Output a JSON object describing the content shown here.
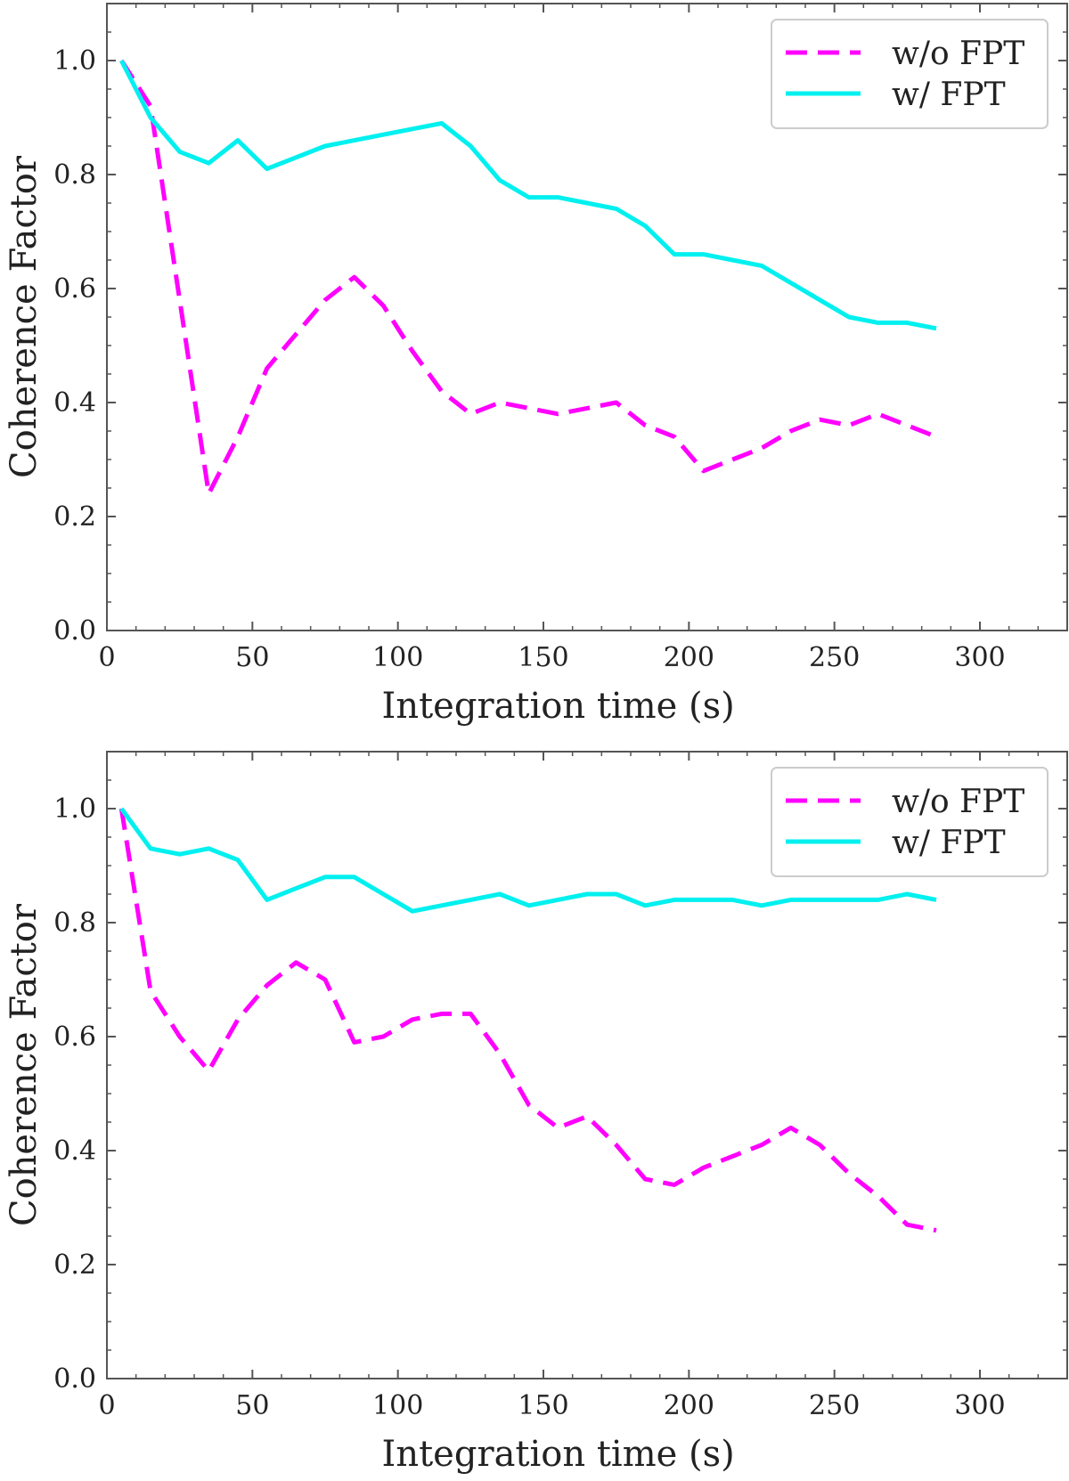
{
  "colors": {
    "wo_fpt": "#ff00ff",
    "w_fpt": "#00f0f0",
    "axis": "#555555"
  },
  "chart_data": [
    {
      "type": "line",
      "title": "",
      "xlabel": "Integration time (s)",
      "ylabel": "Coherence Factor",
      "xlim": [
        0,
        330
      ],
      "ylim": [
        0.0,
        1.1
      ],
      "xticks": [
        0,
        50,
        100,
        150,
        200,
        250,
        300
      ],
      "yticks": [
        0.0,
        0.2,
        0.4,
        0.6,
        0.8,
        1.0
      ],
      "xtick_labels": [
        "0",
        "50",
        "100",
        "150",
        "200",
        "250",
        "300"
      ],
      "ytick_labels": [
        "0.0",
        "0.2",
        "0.4",
        "0.6",
        "0.8",
        "1.0"
      ],
      "legend_position": "top-right",
      "x": [
        5,
        15,
        25,
        35,
        45,
        55,
        65,
        75,
        85,
        95,
        105,
        115,
        125,
        135,
        145,
        155,
        165,
        175,
        185,
        195,
        205,
        215,
        225,
        235,
        245,
        255,
        265,
        275,
        285
      ],
      "series": [
        {
          "name": "w/o FPT",
          "style": "dashed",
          "color": "#ff00ff",
          "values": [
            1.0,
            0.92,
            0.58,
            0.24,
            0.34,
            0.46,
            0.52,
            0.58,
            0.62,
            0.57,
            0.49,
            0.42,
            0.38,
            0.4,
            0.39,
            0.38,
            0.39,
            0.4,
            0.36,
            0.34,
            0.28,
            0.3,
            0.32,
            0.35,
            0.37,
            0.36,
            0.38,
            0.36,
            0.34
          ]
        },
        {
          "name": "w/ FPT",
          "style": "solid",
          "color": "#00f0f0",
          "values": [
            1.0,
            0.9,
            0.84,
            0.82,
            0.86,
            0.81,
            0.83,
            0.85,
            0.86,
            0.87,
            0.88,
            0.89,
            0.85,
            0.79,
            0.76,
            0.76,
            0.75,
            0.74,
            0.71,
            0.66,
            0.66,
            0.65,
            0.64,
            0.61,
            0.58,
            0.55,
            0.54,
            0.54,
            0.53
          ]
        }
      ]
    },
    {
      "type": "line",
      "title": "",
      "xlabel": "Integration time (s)",
      "ylabel": "Coherence Factor",
      "xlim": [
        0,
        330
      ],
      "ylim": [
        0.0,
        1.1
      ],
      "xticks": [
        0,
        50,
        100,
        150,
        200,
        250,
        300
      ],
      "yticks": [
        0.0,
        0.2,
        0.4,
        0.6,
        0.8,
        1.0
      ],
      "xtick_labels": [
        "0",
        "50",
        "100",
        "150",
        "200",
        "250",
        "300"
      ],
      "ytick_labels": [
        "0.0",
        "0.2",
        "0.4",
        "0.6",
        "0.8",
        "1.0"
      ],
      "legend_position": "top-right",
      "x": [
        5,
        15,
        25,
        35,
        45,
        55,
        65,
        75,
        85,
        95,
        105,
        115,
        125,
        135,
        145,
        155,
        165,
        175,
        185,
        195,
        205,
        215,
        225,
        235,
        245,
        255,
        265,
        275,
        285
      ],
      "series": [
        {
          "name": "w/o FPT",
          "style": "dashed",
          "color": "#ff00ff",
          "values": [
            1.0,
            0.68,
            0.6,
            0.54,
            0.63,
            0.69,
            0.73,
            0.7,
            0.59,
            0.6,
            0.63,
            0.64,
            0.64,
            0.57,
            0.48,
            0.44,
            0.46,
            0.41,
            0.35,
            0.34,
            0.37,
            0.39,
            0.41,
            0.44,
            0.41,
            0.36,
            0.32,
            0.27,
            0.26
          ]
        },
        {
          "name": "w/ FPT",
          "style": "solid",
          "color": "#00f0f0",
          "values": [
            1.0,
            0.93,
            0.92,
            0.93,
            0.91,
            0.84,
            0.86,
            0.88,
            0.88,
            0.85,
            0.82,
            0.83,
            0.84,
            0.85,
            0.83,
            0.84,
            0.85,
            0.85,
            0.83,
            0.84,
            0.84,
            0.84,
            0.83,
            0.84,
            0.84,
            0.84,
            0.84,
            0.85,
            0.84
          ]
        }
      ]
    }
  ]
}
